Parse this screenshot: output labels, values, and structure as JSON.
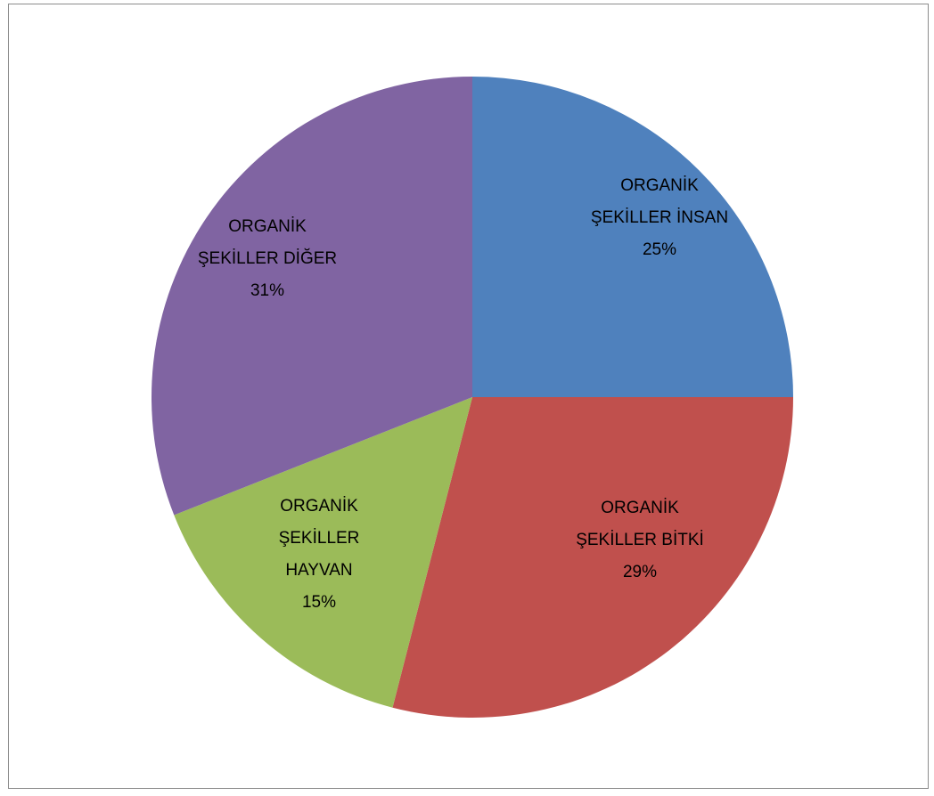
{
  "chart_data": {
    "type": "pie",
    "title": "",
    "slices": [
      {
        "label": "ORGANİK ŞEKİLLER İNSAN",
        "label_lines": [
          "ORGANİK",
          "ŞEKİLLER İNSAN",
          "25%"
        ],
        "value": 25,
        "percent_label": "25%",
        "color": "#4F81BD"
      },
      {
        "label": "ORGANİK ŞEKİLLER BİTKİ",
        "label_lines": [
          "ORGANİK",
          "ŞEKİLLER BİTKİ",
          "29%"
        ],
        "value": 29,
        "percent_label": "29%",
        "color": "#C0504D"
      },
      {
        "label": "ORGANİK ŞEKİLLER HAYVAN",
        "label_lines": [
          "ORGANİK",
          "ŞEKİLLER",
          "HAYVAN",
          "15%"
        ],
        "value": 15,
        "percent_label": "15%",
        "color": "#9BBB59"
      },
      {
        "label": "ORGANİK ŞEKİLLER DİĞER",
        "label_lines": [
          "ORGANİK",
          "ŞEKİLLER DİĞER",
          "31%"
        ],
        "value": 31,
        "percent_label": "31%",
        "color": "#8064A2"
      }
    ],
    "start_angle": "12 o'clock",
    "direction": "clockwise",
    "legend": "none",
    "data_labels": "inside"
  }
}
